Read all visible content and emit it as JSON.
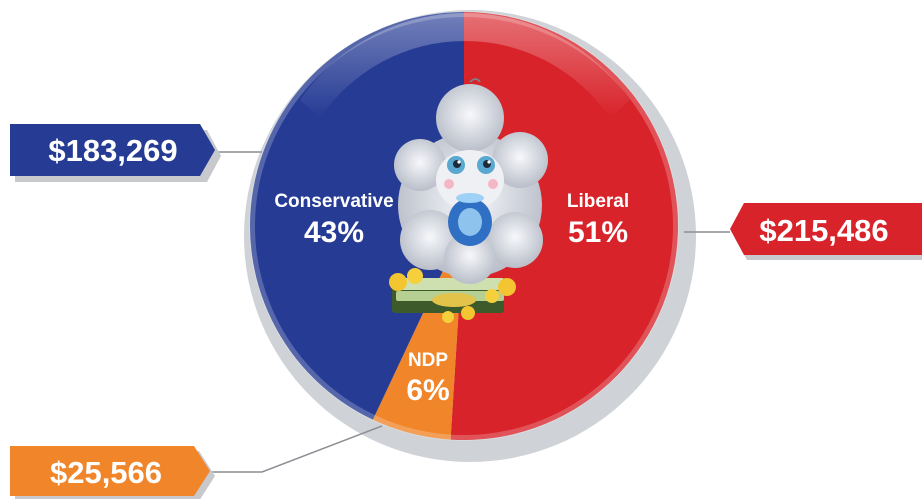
{
  "chart_data": {
    "type": "pie",
    "slices": [
      {
        "label": "Liberal",
        "percent_label": "51%",
        "value": 51,
        "amount": "$215,486",
        "color": "#d8232a"
      },
      {
        "label": "NDP",
        "percent_label": "6%",
        "value": 6,
        "amount": "$25,566",
        "color": "#f1852a"
      },
      {
        "label": "Conservative",
        "percent_label": "43%",
        "value": 43,
        "amount": "$183,269",
        "color": "#263b94"
      }
    ]
  },
  "illustration": {
    "icon": "baby-sheep-with-pacifier-and-money-icon"
  }
}
